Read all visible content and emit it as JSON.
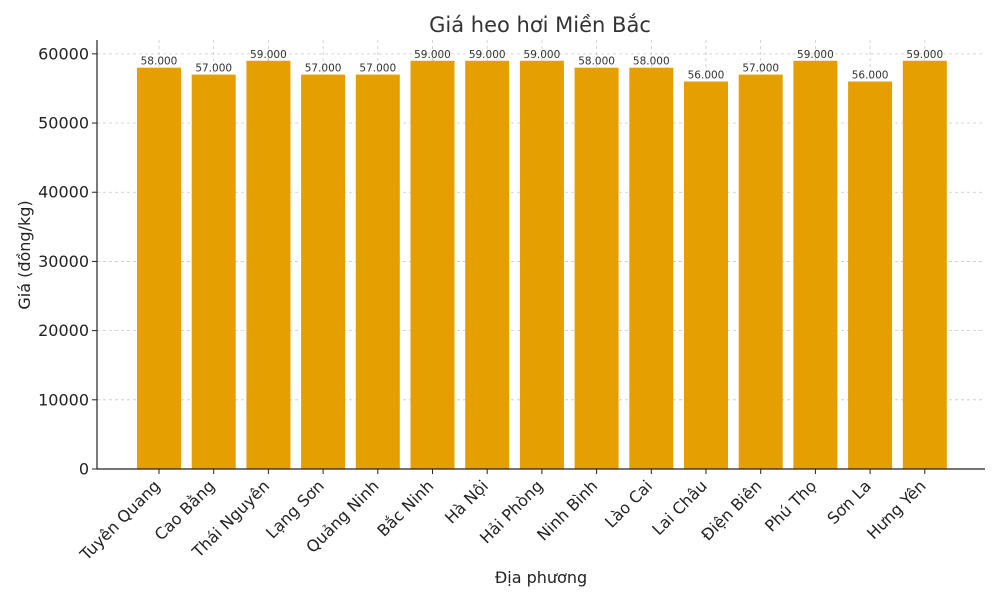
{
  "chart_data": {
    "type": "bar",
    "title": "Giá heo hơi Miền Bắc",
    "xlabel": "Địa phương",
    "ylabel": "Giá (đồng/kg)",
    "ylim": [
      0,
      62000
    ],
    "yticks": [
      0,
      10000,
      20000,
      30000,
      40000,
      50000,
      60000
    ],
    "ytick_labels": [
      "0",
      "10000",
      "20000",
      "30000",
      "40000",
      "50000",
      "60000"
    ],
    "grid": true,
    "bar_color": "#E69F00",
    "categories": [
      "Tuyên Quang",
      "Cao Bằng",
      "Thái Nguyên",
      "Lạng Sơn",
      "Quảng Ninh",
      "Bắc Ninh",
      "Hà Nội",
      "Hải Phòng",
      "Ninh Bình",
      "Lào Cai",
      "Lai Châu",
      "Điện Biên",
      "Phú Thọ",
      "Sơn La",
      "Hưng Yên"
    ],
    "values": [
      58000,
      57000,
      59000,
      57000,
      57000,
      59000,
      59000,
      59000,
      58000,
      58000,
      56000,
      57000,
      59000,
      56000,
      59000
    ],
    "data_labels": [
      "58.000",
      "57.000",
      "59.000",
      "57.000",
      "57.000",
      "59.000",
      "59.000",
      "59.000",
      "58.000",
      "58.000",
      "56.000",
      "57.000",
      "59.000",
      "56.000",
      "59.000"
    ]
  }
}
